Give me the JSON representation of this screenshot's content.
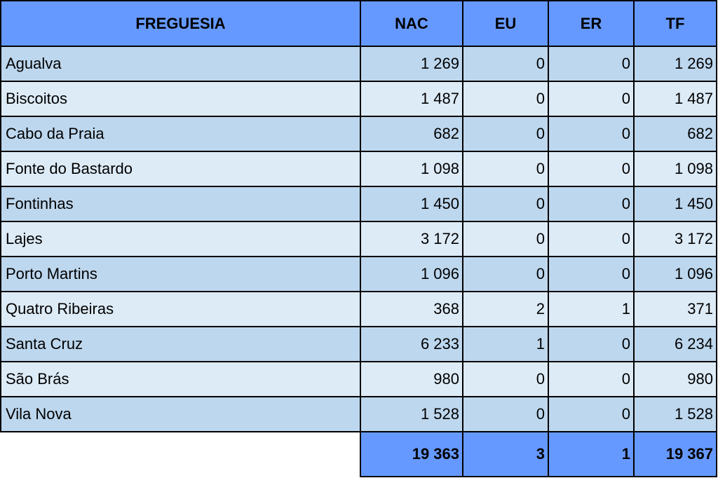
{
  "table": {
    "headers": [
      "FREGUESIA",
      "NAC",
      "EU",
      "ER",
      "TF"
    ],
    "rows": [
      {
        "freguesia": "Agualva",
        "nac": "1 269",
        "eu": "0",
        "er": "0",
        "tf": "1 269"
      },
      {
        "freguesia": "Biscoitos",
        "nac": "1 487",
        "eu": "0",
        "er": "0",
        "tf": "1 487"
      },
      {
        "freguesia": "Cabo da Praia",
        "nac": "682",
        "eu": "0",
        "er": "0",
        "tf": "682"
      },
      {
        "freguesia": "Fonte do Bastardo",
        "nac": "1 098",
        "eu": "0",
        "er": "0",
        "tf": "1 098"
      },
      {
        "freguesia": "Fontinhas",
        "nac": "1 450",
        "eu": "0",
        "er": "0",
        "tf": "1 450"
      },
      {
        "freguesia": "Lajes",
        "nac": "3 172",
        "eu": "0",
        "er": "0",
        "tf": "3 172"
      },
      {
        "freguesia": "Porto Martins",
        "nac": "1 096",
        "eu": "0",
        "er": "0",
        "tf": "1 096"
      },
      {
        "freguesia": "Quatro Ribeiras",
        "nac": "368",
        "eu": "2",
        "er": "1",
        "tf": "371"
      },
      {
        "freguesia": "Santa Cruz",
        "nac": "6 233",
        "eu": "1",
        "er": "0",
        "tf": "6 234"
      },
      {
        "freguesia": "São Brás",
        "nac": "980",
        "eu": "0",
        "er": "0",
        "tf": "980"
      },
      {
        "freguesia": "Vila Nova",
        "nac": "1 528",
        "eu": "0",
        "er": "0",
        "tf": "1 528"
      }
    ],
    "totals": {
      "nac": "19 363",
      "eu": "3",
      "er": "1",
      "tf": "19 367"
    }
  },
  "colors": {
    "header_bg": "#6699ff",
    "row_odd_bg": "#bdd7ee",
    "row_even_bg": "#ddebf7",
    "border": "#000000"
  }
}
